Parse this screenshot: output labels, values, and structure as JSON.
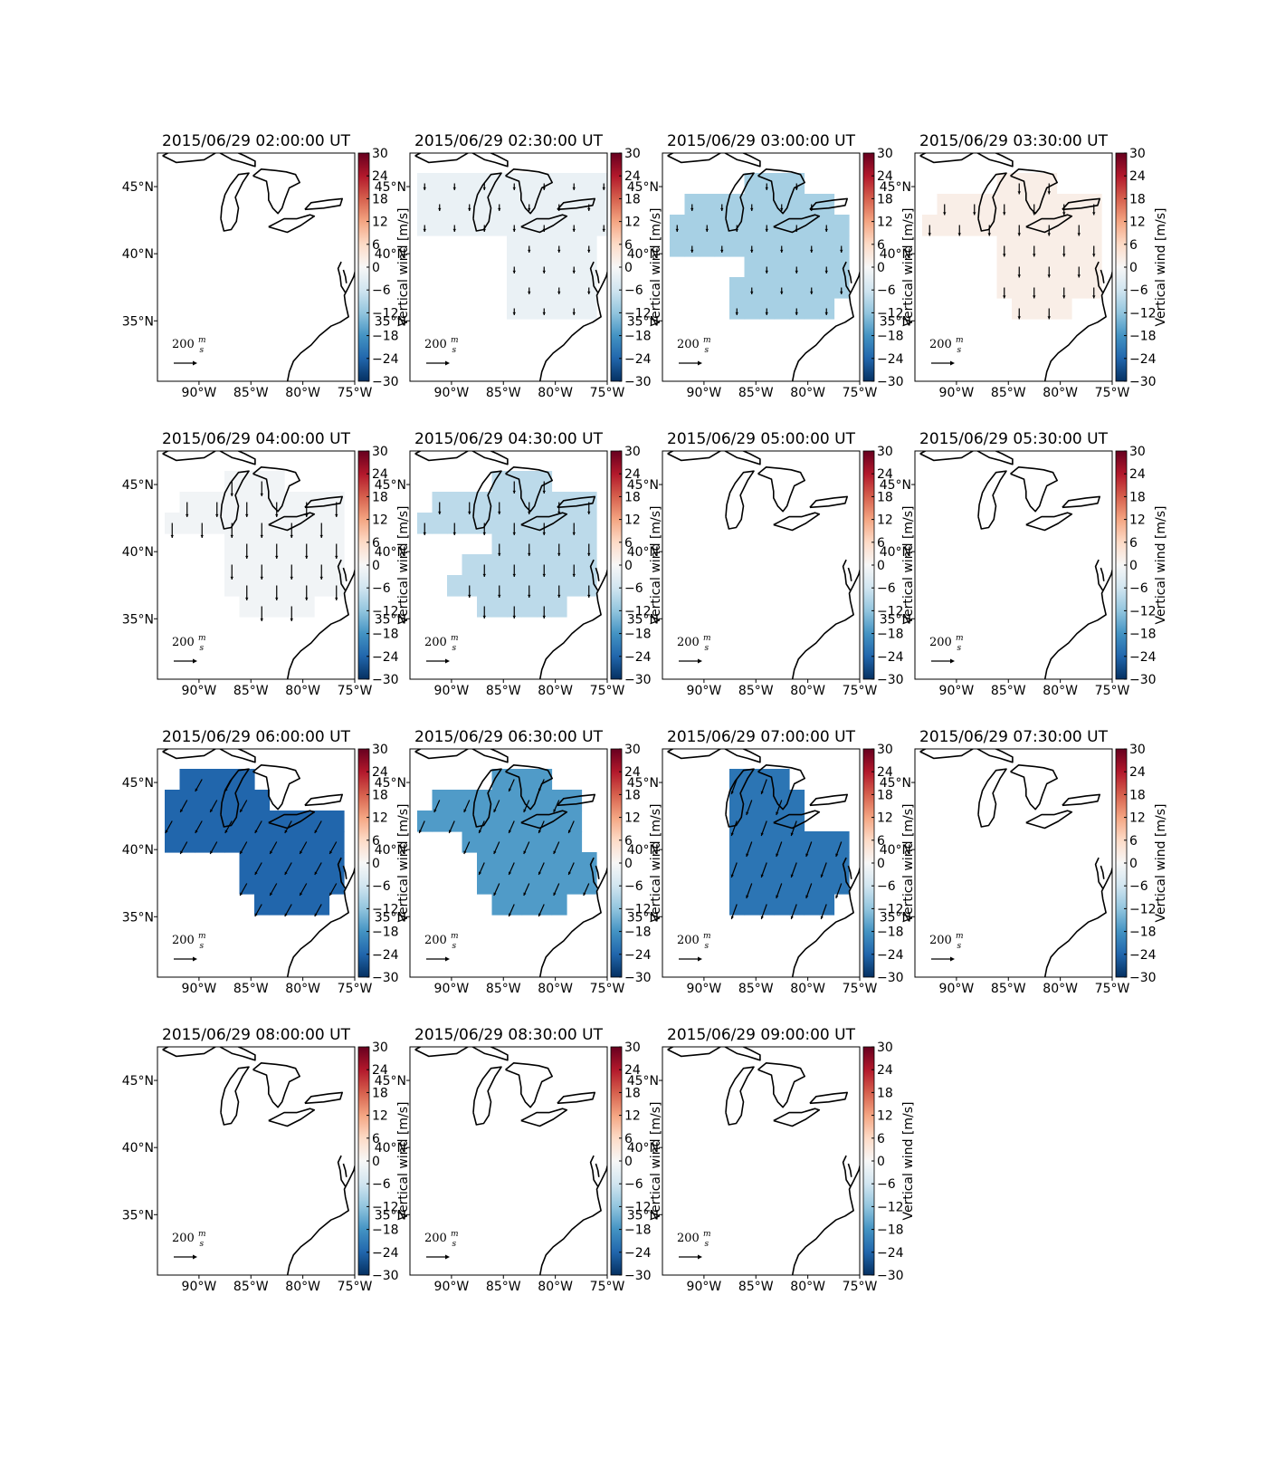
{
  "figure": {
    "colorbar": {
      "colormap": "RdBu_r",
      "label": "Vertical wind [m/s]",
      "range": [
        -30,
        30
      ],
      "ticks": [
        "30",
        "24",
        "18",
        "12",
        "6",
        "0",
        "−6",
        "−12",
        "−18",
        "−24",
        "−30"
      ],
      "colors": [
        "#053061",
        "#2166ac",
        "#4393c3",
        "#92c5de",
        "#d1e5f0",
        "#f7f7f7",
        "#fddbc7",
        "#f4a582",
        "#d6604d",
        "#b2182b",
        "#67001f"
      ]
    },
    "map": {
      "lon_ticks": [
        "90°W",
        "85°W",
        "80°W",
        "75°W"
      ],
      "lat_ticks": [
        "45°N",
        "40°N",
        "35°N"
      ],
      "lon_range": [
        -94,
        -75
      ],
      "lat_range": [
        30.5,
        47.5
      ]
    },
    "scale_arrow": {
      "value": "200",
      "unit_num": "m",
      "unit_den": "s"
    },
    "colors": {
      "coastline": "#000000",
      "arrow": "#000000",
      "frame": "#000000"
    }
  },
  "chart_data": [
    {
      "type": "heatmap",
      "title": "2015/06/29 02:00:00 UT",
      "value": 0,
      "cells": null,
      "arrows": {
        "u": 0,
        "v": 0
      }
    },
    {
      "type": "heatmap",
      "title": "2015/06/29 02:30:00 UT",
      "value": -2,
      "cells": [
        "1111111111111",
        "1111111111111",
        "1111111111111",
        "0000001111110",
        "0000001111110",
        "0000001111110",
        "0000001111110"
      ],
      "arrows": {
        "u": 0,
        "v": -25
      }
    },
    {
      "type": "heatmap",
      "title": "2015/06/29 03:00:00 UT",
      "value": -10,
      "cells": [
        "0000011110000",
        "0111111111100",
        "1111111111110",
        "1111111111110",
        "0000011111110",
        "0000111111110",
        "0000111111100"
      ],
      "arrows": {
        "u": 0,
        "v": -25
      }
    },
    {
      "type": "heatmap",
      "title": "2015/06/29 03:30:00 UT",
      "value": 2,
      "cells": [
        "0000011110000",
        "0111111111110",
        "1111111111110",
        "0000011111110",
        "0000011111110",
        "0000011111110",
        "0000001111000"
      ],
      "arrows": {
        "u": 0,
        "v": -40
      }
    },
    {
      "type": "heatmap",
      "title": "2015/06/29 04:00:00 UT",
      "value": -1,
      "cells": [
        "0000111100000",
        "0111111111110",
        "1111111111110",
        "0000111111110",
        "0000111111110",
        "0000111111110",
        "0000011111000"
      ],
      "arrows": {
        "u": 0,
        "v": -55
      }
    },
    {
      "type": "heatmap",
      "title": "2015/06/29 04:30:00 UT",
      "value": -8,
      "cells": [
        "0000011110000",
        "0111111111110",
        "1111111111110",
        "0000011111110",
        "0001111111110",
        "0011111111110",
        "0000111111000"
      ],
      "arrows": {
        "u": 0,
        "v": -45
      }
    },
    {
      "type": "heatmap",
      "title": "2015/06/29 05:00:00 UT",
      "value": 0,
      "cells": null,
      "arrows": {
        "u": 0,
        "v": 0
      }
    },
    {
      "type": "heatmap",
      "title": "2015/06/29 05:30:00 UT",
      "value": 0,
      "cells": null,
      "arrows": {
        "u": 0,
        "v": 0
      }
    },
    {
      "type": "heatmap",
      "title": "2015/06/29 06:00:00 UT",
      "value": -24,
      "cells": [
        "0111110000000",
        "1111111000000",
        "1111111111110",
        "1111111111110",
        "0000011111110",
        "0000011111110",
        "0000001111100"
      ],
      "arrows": {
        "u": -25,
        "v": -45
      }
    },
    {
      "type": "heatmap",
      "title": "2015/06/29 06:30:00 UT",
      "value": -17,
      "cells": [
        "0000011110000",
        "0111111111100",
        "1111111111100",
        "0001111111100",
        "0000111111110",
        "0000111111110",
        "0000011111000"
      ],
      "arrows": {
        "u": -20,
        "v": -45
      }
    },
    {
      "type": "heatmap",
      "title": "2015/06/29 07:00:00 UT",
      "value": -22,
      "cells": [
        "0000111100000",
        "0000111110000",
        "0000111110000",
        "0000111111110",
        "0000111111110",
        "0000111111110",
        "0000111111100"
      ],
      "arrows": {
        "u": -20,
        "v": -55
      }
    },
    {
      "type": "heatmap",
      "title": "2015/06/29 07:30:00 UT",
      "value": 0,
      "cells": null,
      "arrows": {
        "u": 0,
        "v": 0
      }
    },
    {
      "type": "heatmap",
      "title": "2015/06/29 08:00:00 UT",
      "value": 0,
      "cells": null,
      "arrows": {
        "u": 0,
        "v": 0
      }
    },
    {
      "type": "heatmap",
      "title": "2015/06/29 08:30:00 UT",
      "value": 0,
      "cells": null,
      "arrows": {
        "u": 0,
        "v": 0
      }
    },
    {
      "type": "heatmap",
      "title": "2015/06/29 09:00:00 UT",
      "value": 0,
      "cells": null,
      "arrows": {
        "u": 0,
        "v": 0
      }
    }
  ]
}
